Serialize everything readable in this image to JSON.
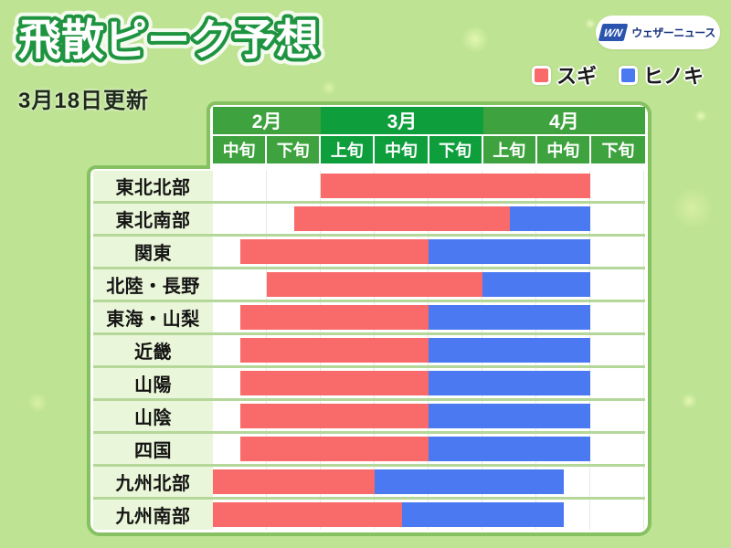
{
  "page": {
    "title": "飛散ピーク予想",
    "updated": "3月18日更新"
  },
  "logo": {
    "mark": "WN",
    "text": "ウェザーニュース"
  },
  "colors": {
    "background": "#bee393",
    "table_border": "#86c161",
    "label_cell_bg": "#eaf6d9",
    "row_separator": "#b5d79a",
    "title_stroke": "#1e9440",
    "sugi_red": "#f96a6a",
    "hinoki_blue": "#4b79f1",
    "month_green": "#3ea33e",
    "month_green_dark": "#0e9e3c"
  },
  "chart_data": {
    "type": "bar",
    "subtype": "gantt-timeline",
    "title": "飛散ピーク予想",
    "updated": "3月18日更新",
    "legend_position": "top-right",
    "unit_note": "bar start/end are in half-period units, 0 = start of 2月中旬, 16 = end of 4月下旬",
    "series": [
      {
        "key": "sugi",
        "name": "スギ",
        "color": "#f96a6a"
      },
      {
        "key": "hinoki",
        "name": "ヒノキ",
        "color": "#4b79f1"
      }
    ],
    "months": [
      {
        "label": "2月",
        "periods": [
          "中旬",
          "下旬"
        ],
        "header_color": "#3ea33e"
      },
      {
        "label": "3月",
        "periods": [
          "上旬",
          "中旬",
          "下旬"
        ],
        "header_color": "#0e9e3c"
      },
      {
        "label": "4月",
        "periods": [
          "上旬",
          "中旬",
          "下旬"
        ],
        "header_color": "#3ea33e"
      }
    ],
    "columns": [
      "2月中旬",
      "2月下旬",
      "3月上旬",
      "3月中旬",
      "3月下旬",
      "4月上旬",
      "4月中旬",
      "4月下旬"
    ],
    "regions": [
      {
        "name": "東北北部",
        "sugi": [
          4,
          14
        ],
        "hinoki": null
      },
      {
        "name": "東北南部",
        "sugi": [
          3,
          11
        ],
        "hinoki": [
          11,
          14
        ]
      },
      {
        "name": "関東",
        "sugi": [
          1,
          8
        ],
        "hinoki": [
          8,
          14
        ]
      },
      {
        "name": "北陸・長野",
        "sugi": [
          2,
          10
        ],
        "hinoki": [
          10,
          14
        ]
      },
      {
        "name": "東海・山梨",
        "sugi": [
          1,
          8
        ],
        "hinoki": [
          8,
          14
        ]
      },
      {
        "name": "近畿",
        "sugi": [
          1,
          8
        ],
        "hinoki": [
          8,
          14
        ]
      },
      {
        "name": "山陽",
        "sugi": [
          1,
          8
        ],
        "hinoki": [
          8,
          14
        ]
      },
      {
        "name": "山陰",
        "sugi": [
          1,
          8
        ],
        "hinoki": [
          8,
          14
        ]
      },
      {
        "name": "四国",
        "sugi": [
          1,
          8
        ],
        "hinoki": [
          8,
          14
        ]
      },
      {
        "name": "九州北部",
        "sugi": [
          0,
          6
        ],
        "hinoki": [
          6,
          13
        ]
      },
      {
        "name": "九州南部",
        "sugi": [
          0,
          7
        ],
        "hinoki": [
          7,
          13
        ]
      }
    ]
  }
}
